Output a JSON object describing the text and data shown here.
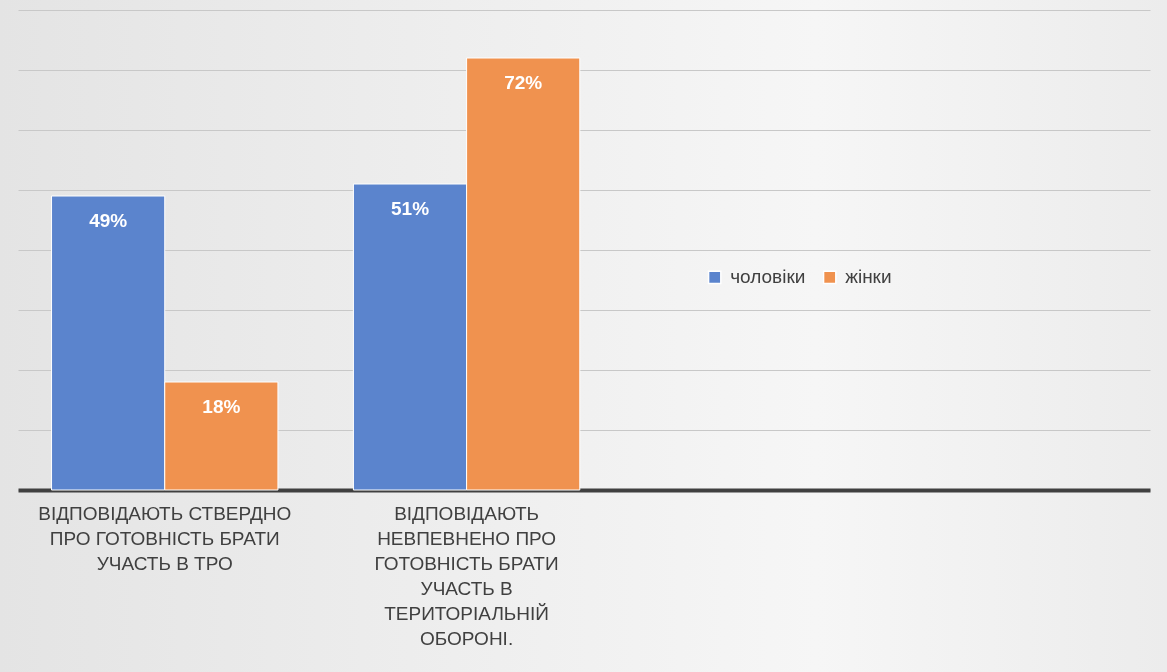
{
  "chart_data": {
    "type": "bar",
    "categories": [
      "ВІДПОВІДАЮТЬ СТВЕРДНО ПРО ГОТОВНІСТЬ БРАТИ УЧАСТЬ В ТРО",
      "ВІДПОВІДАЮТЬ НЕВПЕВНЕНО ПРО ГОТОВНІСТЬ БРАТИ УЧАСТЬ В ТЕРИТОРІАЛЬНІЙ ОБОРОНІ."
    ],
    "series": [
      {
        "name": "чоловіки",
        "color": "#5b84cd",
        "values": [
          49,
          51
        ],
        "value_labels": [
          "49%",
          "51%"
        ]
      },
      {
        "name": "жінки",
        "color": "#f0924f",
        "values": [
          18,
          72
        ],
        "value_labels": [
          "18%",
          "72%"
        ]
      }
    ],
    "grid": "y",
    "legend": "right",
    "tick_labels": "x"
  }
}
